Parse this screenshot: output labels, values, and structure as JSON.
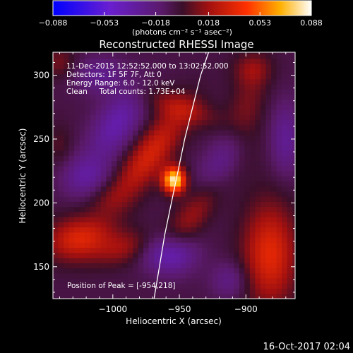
{
  "chart_data": {
    "type": "heatmap",
    "title": "Reconstructed RHESSI Image",
    "xlabel": "Heliocentric X (arcsec)",
    "ylabel": "Heliocentric Y (arcsec)",
    "xlim": [
      -1045,
      -863
    ],
    "ylim": [
      125,
      318
    ],
    "x_ticks": [
      -1000,
      -950,
      -900
    ],
    "x_tick_labels": [
      "−1000",
      "−950",
      "−900"
    ],
    "y_ticks": [
      150,
      200,
      250,
      300
    ],
    "y_tick_labels": [
      "150",
      "200",
      "250",
      "300"
    ],
    "colorbar": {
      "range": [
        -0.088,
        0.088
      ],
      "ticks": [
        -0.088,
        -0.053,
        -0.018,
        0.018,
        0.053,
        0.088
      ],
      "tick_labels": [
        "−0.088",
        "−0.053",
        "−0.018",
        "0.018",
        "0.053",
        "0.088"
      ],
      "units_label": "(photons cm⁻² s⁻¹ asec⁻²)",
      "colormap": "blue-purple-red-yellow-white (IDL color table 5)"
    },
    "info_lines": [
      "11-Dec-2015 12:52:52.000 to 13:02:52.000",
      "Detectors: 1F 5F 7F, Att 0",
      "Energy Range: 6.0 - 12.0 keV",
      "Clean     Total counts: 1.73E+04"
    ],
    "peak_label": "Position of Peak = [-954,218]",
    "peak_position": [
      -954,
      218
    ],
    "limb_curve_x": [
      -969,
      -965,
      -961,
      -956,
      -951,
      -946,
      -940,
      -934,
      -928
    ],
    "limb_curve_y": [
      125,
      150,
      175,
      200,
      225,
      250,
      275,
      300,
      318
    ],
    "limb_color": "#ffffff",
    "grid": false,
    "legend": "none",
    "components": [
      {
        "kind": "source",
        "x": -954,
        "y": 218,
        "amp": 0.088,
        "sx": 6,
        "sy": 7,
        "angle": 0
      },
      {
        "kind": "lobe",
        "x": -972,
        "y": 238,
        "amp": 0.038,
        "sx": 10,
        "sy": 30,
        "angle": -35
      },
      {
        "kind": "lobe",
        "x": -935,
        "y": 198,
        "amp": 0.032,
        "sx": 9,
        "sy": 26,
        "angle": -35
      },
      {
        "kind": "lobe",
        "x": -950,
        "y": 275,
        "amp": 0.02,
        "sx": 22,
        "sy": 8,
        "angle": -20
      },
      {
        "kind": "lobe",
        "x": -1025,
        "y": 172,
        "amp": 0.04,
        "sx": 18,
        "sy": 12,
        "angle": 10
      },
      {
        "kind": "lobe",
        "x": -990,
        "y": 165,
        "amp": 0.02,
        "sx": 15,
        "sy": 9,
        "angle": 20
      },
      {
        "kind": "lobe",
        "x": -882,
        "y": 160,
        "amp": 0.042,
        "sx": 14,
        "sy": 28,
        "angle": 0
      },
      {
        "kind": "lobe",
        "x": -900,
        "y": 265,
        "amp": 0.022,
        "sx": 10,
        "sy": 26,
        "angle": -10
      },
      {
        "kind": "lobe",
        "x": -895,
        "y": 305,
        "amp": 0.018,
        "sx": 10,
        "sy": 9,
        "angle": 0
      },
      {
        "kind": "lobe",
        "x": -1040,
        "y": 310,
        "amp": 0.016,
        "sx": 9,
        "sy": 9,
        "angle": 0
      },
      {
        "kind": "lobe",
        "x": -1040,
        "y": 245,
        "amp": 0.01,
        "sx": 7,
        "sy": 12,
        "angle": 0
      },
      {
        "kind": "lobe",
        "x": -1005,
        "y": 205,
        "amp": 0.012,
        "sx": 12,
        "sy": 10,
        "angle": 0
      },
      {
        "kind": "negative",
        "x": -997,
        "y": 262,
        "amp": -0.03,
        "sx": 11,
        "sy": 22,
        "angle": -30
      },
      {
        "kind": "negative",
        "x": -1020,
        "y": 220,
        "amp": -0.025,
        "sx": 13,
        "sy": 12,
        "angle": 0
      },
      {
        "kind": "negative",
        "x": -918,
        "y": 228,
        "amp": -0.03,
        "sx": 10,
        "sy": 28,
        "angle": -30
      },
      {
        "kind": "negative",
        "x": -958,
        "y": 160,
        "amp": -0.036,
        "sx": 14,
        "sy": 11,
        "angle": 0
      },
      {
        "kind": "negative",
        "x": -870,
        "y": 250,
        "amp": -0.022,
        "sx": 8,
        "sy": 20,
        "angle": 0
      },
      {
        "kind": "negative",
        "x": -1010,
        "y": 300,
        "amp": -0.02,
        "sx": 14,
        "sy": 10,
        "angle": 0
      },
      {
        "kind": "negative",
        "x": -912,
        "y": 140,
        "amp": -0.018,
        "sx": 10,
        "sy": 10,
        "angle": 0
      }
    ]
  },
  "footer": {
    "timestamp": "16-Oct-2017 02:04"
  }
}
